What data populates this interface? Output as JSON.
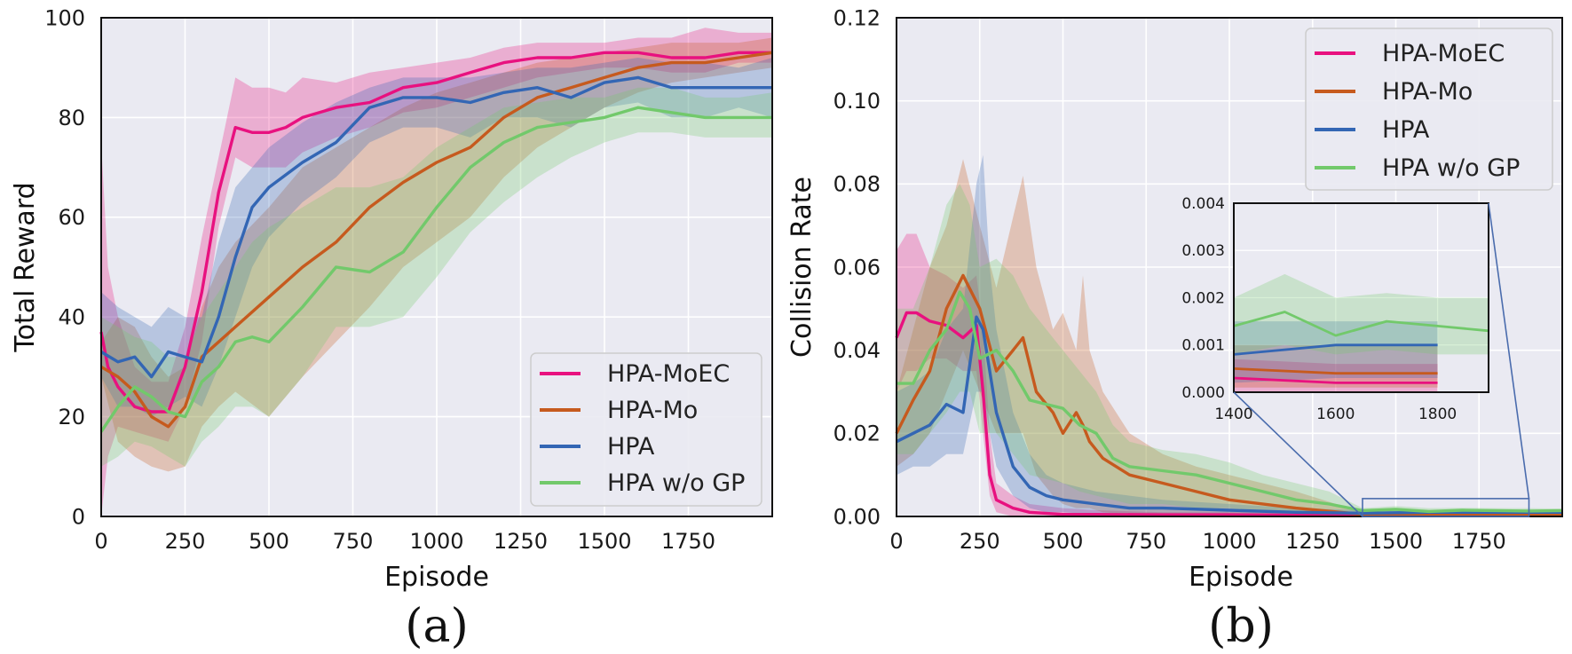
{
  "chart_data": [
    {
      "type": "line",
      "panel_label": "(a)",
      "xlabel": "Episode",
      "ylabel": "Total Reward",
      "xlim": [
        0,
        2000
      ],
      "ylim": [
        0,
        100
      ],
      "xticks": [
        0,
        250,
        500,
        750,
        1000,
        1250,
        1500,
        1750
      ],
      "yticks": [
        0,
        20,
        40,
        60,
        80,
        100
      ],
      "grid": true,
      "legend_position": "bottom-right",
      "series": [
        {
          "name": "HPA-MoEC",
          "color": "#e8117f",
          "x": [
            0,
            20,
            50,
            100,
            150,
            200,
            250,
            300,
            350,
            400,
            450,
            500,
            550,
            600,
            700,
            800,
            900,
            1000,
            1100,
            1200,
            1300,
            1400,
            1500,
            1600,
            1700,
            1800,
            1900,
            2000
          ],
          "y": [
            37,
            30,
            26,
            22,
            21,
            21,
            30,
            45,
            65,
            78,
            77,
            77,
            78,
            80,
            82,
            83,
            86,
            87,
            89,
            91,
            92,
            92,
            93,
            93,
            92,
            92,
            93,
            93
          ],
          "lower": [
            0,
            12,
            18,
            17,
            16,
            15,
            22,
            35,
            58,
            72,
            70,
            70,
            70,
            73,
            76,
            78,
            81,
            82,
            84,
            86,
            88,
            89,
            90,
            90,
            89,
            89,
            91,
            91
          ],
          "upper": [
            75,
            50,
            40,
            30,
            27,
            27,
            38,
            56,
            72,
            88,
            86,
            86,
            85,
            88,
            87,
            89,
            90,
            91,
            92,
            94,
            95,
            95,
            95,
            96,
            96,
            98,
            97,
            97
          ]
        },
        {
          "name": "HPA-Mo",
          "color": "#c65a1e",
          "x": [
            0,
            50,
            100,
            150,
            200,
            250,
            300,
            350,
            400,
            500,
            600,
            700,
            800,
            900,
            1000,
            1100,
            1200,
            1300,
            1400,
            1500,
            1600,
            1700,
            1800,
            1900,
            2000
          ],
          "y": [
            30,
            28,
            25,
            20,
            18,
            22,
            32,
            35,
            38,
            44,
            50,
            55,
            62,
            67,
            71,
            74,
            80,
            84,
            86,
            88,
            90,
            91,
            91,
            92,
            93
          ],
          "lower": [
            28,
            15,
            12,
            10,
            9,
            10,
            18,
            22,
            25,
            20,
            28,
            35,
            42,
            50,
            55,
            60,
            68,
            74,
            78,
            82,
            85,
            87,
            88,
            89,
            90
          ],
          "upper": [
            35,
            40,
            38,
            32,
            28,
            30,
            42,
            50,
            55,
            62,
            70,
            74,
            78,
            82,
            85,
            87,
            89,
            91,
            92,
            93,
            94,
            95,
            95,
            95,
            96
          ]
        },
        {
          "name": "HPA",
          "color": "#3366b4",
          "x": [
            0,
            50,
            100,
            150,
            200,
            250,
            300,
            350,
            400,
            450,
            500,
            600,
            700,
            800,
            900,
            1000,
            1100,
            1200,
            1300,
            1400,
            1500,
            1600,
            1700,
            1800,
            1900,
            2000
          ],
          "y": [
            33,
            31,
            32,
            28,
            33,
            32,
            31,
            40,
            52,
            62,
            66,
            71,
            75,
            82,
            84,
            84,
            83,
            85,
            86,
            84,
            87,
            88,
            86,
            86,
            86,
            86
          ],
          "lower": [
            28,
            22,
            22,
            20,
            22,
            24,
            22,
            30,
            40,
            50,
            56,
            63,
            68,
            75,
            78,
            78,
            76,
            80,
            80,
            78,
            82,
            83,
            80,
            80,
            82,
            80
          ],
          "upper": [
            45,
            42,
            40,
            38,
            42,
            40,
            40,
            55,
            66,
            70,
            74,
            79,
            83,
            86,
            88,
            88,
            88,
            89,
            90,
            90,
            91,
            92,
            91,
            91,
            90,
            92
          ]
        },
        {
          "name": "HPA w/o GP",
          "color": "#72c96b",
          "x": [
            0,
            50,
            100,
            150,
            200,
            250,
            300,
            350,
            400,
            450,
            500,
            600,
            700,
            800,
            900,
            1000,
            1100,
            1200,
            1300,
            1400,
            1500,
            1600,
            1700,
            1800,
            1900,
            2000
          ],
          "y": [
            17,
            22,
            26,
            24,
            21,
            20,
            27,
            30,
            35,
            36,
            35,
            42,
            50,
            49,
            53,
            62,
            70,
            75,
            78,
            79,
            80,
            82,
            81,
            80,
            80,
            80
          ],
          "lower": [
            10,
            12,
            15,
            14,
            12,
            10,
            15,
            18,
            22,
            22,
            20,
            28,
            38,
            38,
            40,
            48,
            57,
            63,
            68,
            72,
            75,
            77,
            77,
            76,
            76,
            76
          ],
          "upper": [
            40,
            38,
            36,
            35,
            32,
            32,
            40,
            45,
            50,
            55,
            58,
            62,
            66,
            66,
            68,
            74,
            78,
            82,
            83,
            84,
            84,
            86,
            86,
            84,
            84,
            85
          ]
        }
      ],
      "legend": {
        "entries": [
          "HPA-MoEC",
          "HPA-Mo",
          "HPA",
          "HPA w/o GP"
        ]
      }
    },
    {
      "type": "line",
      "panel_label": "(b)",
      "xlabel": "Episode",
      "ylabel": "Collision Rate",
      "xlim": [
        0,
        2000
      ],
      "ylim": [
        0,
        0.12
      ],
      "xticks": [
        0,
        250,
        500,
        750,
        1000,
        1250,
        1500,
        1750
      ],
      "yticks": [
        0.0,
        0.02,
        0.04,
        0.06,
        0.08,
        0.1,
        0.12
      ],
      "grid": true,
      "legend_position": "top-right",
      "series": [
        {
          "name": "HPA-MoEC",
          "color": "#e8117f",
          "x": [
            0,
            30,
            60,
            100,
            150,
            200,
            240,
            260,
            280,
            300,
            350,
            400,
            500,
            600,
            800,
            1000,
            1200,
            1400,
            1600,
            1800,
            2000
          ],
          "y": [
            0.043,
            0.049,
            0.049,
            0.047,
            0.046,
            0.043,
            0.046,
            0.03,
            0.01,
            0.004,
            0.002,
            0.001,
            0.0005,
            0.0005,
            0.0004,
            0.0004,
            0.0003,
            0.0003,
            0.0002,
            0.0002,
            0.0002
          ],
          "lower": [
            0.03,
            0.035,
            0.035,
            0.038,
            0.038,
            0.035,
            0.035,
            0.02,
            0.005,
            0.001,
            0.0,
            0.0,
            0.0,
            0.0,
            0.0,
            0.0,
            0.0,
            0.0,
            0.0,
            0.0,
            0.0
          ],
          "upper": [
            0.064,
            0.068,
            0.068,
            0.06,
            0.058,
            0.055,
            0.058,
            0.045,
            0.02,
            0.008,
            0.005,
            0.003,
            0.002,
            0.0015,
            0.001,
            0.001,
            0.0008,
            0.0007,
            0.0006,
            0.0006,
            0.0006
          ]
        },
        {
          "name": "HPA-Mo",
          "color": "#c65a1e",
          "x": [
            0,
            50,
            100,
            150,
            200,
            250,
            300,
            350,
            380,
            420,
            470,
            500,
            540,
            560,
            580,
            620,
            700,
            800,
            900,
            1000,
            1200,
            1400,
            1600,
            1800,
            2000
          ],
          "y": [
            0.02,
            0.028,
            0.035,
            0.05,
            0.058,
            0.05,
            0.035,
            0.04,
            0.043,
            0.03,
            0.025,
            0.02,
            0.025,
            0.022,
            0.018,
            0.014,
            0.01,
            0.008,
            0.006,
            0.004,
            0.002,
            0.0005,
            0.0004,
            0.0004,
            0.0004
          ],
          "lower": [
            0.012,
            0.015,
            0.02,
            0.03,
            0.04,
            0.03,
            0.02,
            0.02,
            0.02,
            0.01,
            0.005,
            0.003,
            0.002,
            0.002,
            0.002,
            0.001,
            0.0005,
            0.0003,
            0.0002,
            0.0002,
            0.0001,
            0.0001,
            0.0001,
            0.0001,
            0.0001
          ],
          "upper": [
            0.03,
            0.045,
            0.06,
            0.07,
            0.086,
            0.07,
            0.055,
            0.072,
            0.082,
            0.06,
            0.045,
            0.049,
            0.04,
            0.058,
            0.04,
            0.03,
            0.02,
            0.015,
            0.012,
            0.01,
            0.006,
            0.001,
            0.001,
            0.001,
            0.001
          ]
        },
        {
          "name": "HPA",
          "color": "#3366b4",
          "x": [
            0,
            50,
            100,
            150,
            200,
            240,
            260,
            280,
            300,
            350,
            400,
            450,
            500,
            600,
            700,
            800,
            1000,
            1200,
            1400,
            1600,
            1800,
            2000
          ],
          "y": [
            0.018,
            0.02,
            0.022,
            0.027,
            0.025,
            0.048,
            0.045,
            0.035,
            0.025,
            0.012,
            0.007,
            0.005,
            0.004,
            0.003,
            0.002,
            0.002,
            0.0015,
            0.001,
            0.0008,
            0.001,
            0.001,
            0.001
          ],
          "lower": [
            0.01,
            0.012,
            0.012,
            0.015,
            0.015,
            0.03,
            0.03,
            0.02,
            0.012,
            0.005,
            0.002,
            0.001,
            0.001,
            0.0005,
            0.0005,
            0.0004,
            0.0003,
            0.0002,
            0.0002,
            0.0003,
            0.0003,
            0.0003
          ],
          "upper": [
            0.03,
            0.032,
            0.035,
            0.045,
            0.05,
            0.08,
            0.087,
            0.06,
            0.045,
            0.025,
            0.015,
            0.01,
            0.008,
            0.006,
            0.005,
            0.004,
            0.003,
            0.002,
            0.0015,
            0.0015,
            0.0015,
            0.0015
          ]
        },
        {
          "name": "HPA w/o GP",
          "color": "#72c96b",
          "x": [
            0,
            50,
            100,
            150,
            190,
            220,
            250,
            300,
            350,
            400,
            450,
            500,
            550,
            600,
            650,
            700,
            800,
            900,
            1000,
            1100,
            1200,
            1300,
            1400,
            1500,
            1600,
            1700,
            1800,
            1900,
            2000
          ],
          "y": [
            0.032,
            0.032,
            0.04,
            0.045,
            0.054,
            0.05,
            0.038,
            0.04,
            0.035,
            0.028,
            0.027,
            0.026,
            0.022,
            0.02,
            0.014,
            0.012,
            0.011,
            0.01,
            0.008,
            0.006,
            0.004,
            0.003,
            0.0014,
            0.0017,
            0.0012,
            0.0015,
            0.0014,
            0.0013,
            0.0014
          ],
          "lower": [
            0.015,
            0.015,
            0.02,
            0.025,
            0.03,
            0.03,
            0.02,
            0.02,
            0.015,
            0.01,
            0.009,
            0.008,
            0.006,
            0.005,
            0.004,
            0.003,
            0.003,
            0.002,
            0.002,
            0.001,
            0.0008,
            0.0006,
            0.0008,
            0.001,
            0.0008,
            0.0009,
            0.0008,
            0.0008,
            0.0008
          ],
          "upper": [
            0.05,
            0.05,
            0.06,
            0.075,
            0.08,
            0.075,
            0.06,
            0.062,
            0.058,
            0.05,
            0.045,
            0.04,
            0.035,
            0.03,
            0.022,
            0.018,
            0.016,
            0.015,
            0.013,
            0.01,
            0.008,
            0.006,
            0.002,
            0.0025,
            0.002,
            0.0021,
            0.002,
            0.002,
            0.0019
          ]
        }
      ],
      "legend": {
        "entries": [
          "HPA-MoEC",
          "HPA-Mo",
          "HPA",
          "HPA w/o GP"
        ]
      },
      "inset": {
        "xlim": [
          1400,
          1900
        ],
        "ylim": [
          0.0,
          0.004
        ],
        "xticks": [
          1400,
          1600,
          1800
        ],
        "yticks": [
          0.0,
          0.001,
          0.002,
          0.003,
          0.004
        ],
        "xtick_labels": [
          "1400",
          "1600",
          "1800"
        ],
        "ytick_labels": [
          "0.000",
          "0.001",
          "0.002",
          "0.003",
          "0.004"
        ],
        "zoom_region_x": [
          1400,
          1900
        ],
        "zoom_region_y": [
          0.0,
          0.0004
        ]
      }
    }
  ]
}
